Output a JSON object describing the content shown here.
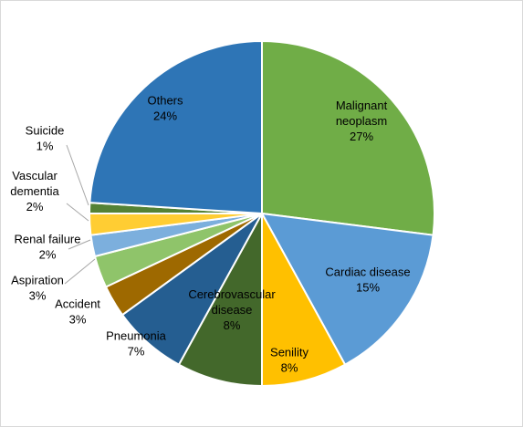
{
  "chart_data": {
    "type": "pie",
    "title": "",
    "slices": [
      {
        "name": "Malignant neoplasm",
        "lines": [
          "Malignant",
          "neoplasm"
        ],
        "pct_label": "27%",
        "value": 27,
        "color": "#70ad47",
        "label_color": "#000000"
      },
      {
        "name": "Cardiac disease",
        "lines": [
          "Cardiac disease"
        ],
        "pct_label": "15%",
        "value": 15,
        "color": "#5b9bd5",
        "label_color": "#000000"
      },
      {
        "name": "Senility",
        "lines": [
          "Senility"
        ],
        "pct_label": "8%",
        "value": 8,
        "color": "#ffc000",
        "label_color": "#000000"
      },
      {
        "name": "Cerebrovascular disease",
        "lines": [
          "Cerebrovascular",
          "disease"
        ],
        "pct_label": "8%",
        "value": 8,
        "color": "#43682b",
        "label_color": "#000000"
      },
      {
        "name": "Pneumonia",
        "lines": [
          "Pneumonia"
        ],
        "pct_label": "7%",
        "value": 7,
        "color": "#255e91",
        "label_color": "#000000"
      },
      {
        "name": "Accident",
        "lines": [
          "Accident"
        ],
        "pct_label": "3%",
        "value": 3,
        "color": "#9e6900",
        "label_color": "#000000"
      },
      {
        "name": "Aspiration",
        "lines": [
          "Aspiration"
        ],
        "pct_label": "3%",
        "value": 3,
        "color": "#8fc46a",
        "label_color": "#000000"
      },
      {
        "name": "Renal failure",
        "lines": [
          "Renal failure"
        ],
        "pct_label": "2%",
        "value": 2,
        "color": "#7cafdd",
        "label_color": "#000000"
      },
      {
        "name": "Vascular dementia",
        "lines": [
          "Vascular",
          "dementia"
        ],
        "pct_label": "2%",
        "value": 2,
        "color": "#ffcd33",
        "label_color": "#000000"
      },
      {
        "name": "Suicide",
        "lines": [
          "Suicide"
        ],
        "pct_label": "1%",
        "value": 1,
        "color": "#548235",
        "label_color": "#000000"
      },
      {
        "name": "Others",
        "lines": [
          "Others"
        ],
        "pct_label": "24%",
        "value": 24,
        "color": "#2e75b6",
        "label_color": "#000000"
      }
    ],
    "legend": "none"
  }
}
